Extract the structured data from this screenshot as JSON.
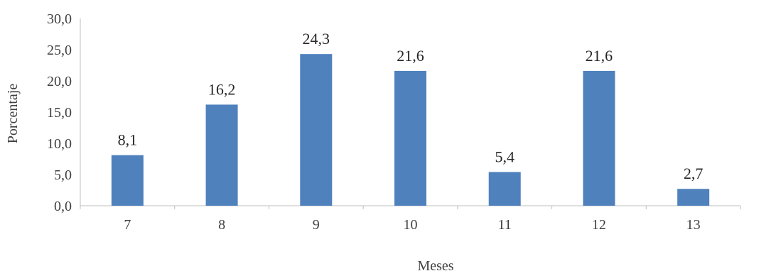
{
  "chart_data": {
    "type": "bar",
    "title": "",
    "xlabel": "Meses",
    "ylabel": "Porcentaje",
    "categories": [
      "7",
      "8",
      "9",
      "10",
      "11",
      "12",
      "13"
    ],
    "values": [
      8.1,
      16.2,
      24.3,
      21.6,
      5.4,
      21.6,
      2.7
    ],
    "data_labels": [
      "8,1",
      "16,2",
      "24,3",
      "21,6",
      "5,4",
      "21,6",
      "2,7"
    ],
    "ylim": [
      0,
      30
    ],
    "yticks": [
      0,
      5,
      10,
      15,
      20,
      25,
      30
    ],
    "ytick_labels": [
      "0,0",
      "5,0",
      "10,0",
      "15,0",
      "20,0",
      "25,0",
      "30,0"
    ],
    "grid": false,
    "legend": "none",
    "colors": {
      "bar": "#4F81BD",
      "axis": "#BFBFBF"
    }
  }
}
